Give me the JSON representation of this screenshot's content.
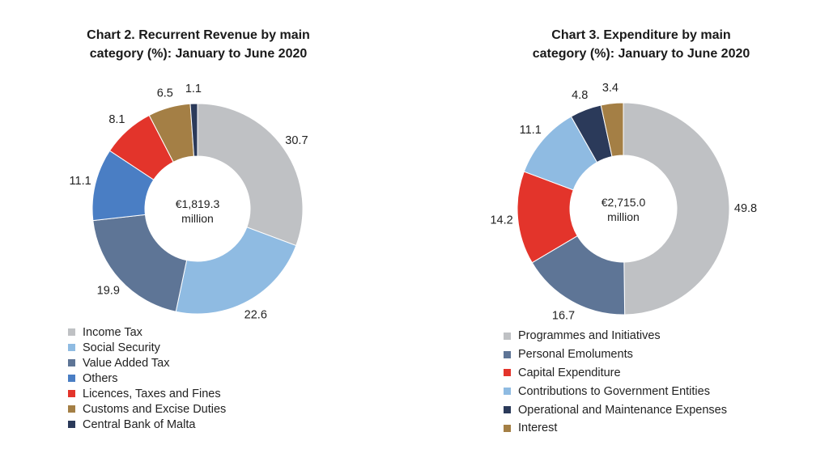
{
  "chart_data": [
    {
      "type": "pie",
      "donut": true,
      "title": "Chart 2. Recurrent Revenue by main category (%): January to June 2020",
      "title_lines": [
        "Chart 2. Recurrent Revenue by main",
        "category (%): January to June 2020"
      ],
      "center_text": [
        "€1,819.3",
        "million"
      ],
      "categories": [
        "Income Tax",
        "Social Security",
        "Value Added Tax",
        "Others",
        "Licences, Taxes and Fines",
        "Customs and Excise Duties",
        "Central Bank of Malta"
      ],
      "values": [
        30.7,
        22.6,
        19.9,
        11.1,
        8.1,
        6.5,
        1.1
      ],
      "colors": [
        "#bfc1c4",
        "#8fbbe2",
        "#5e7596",
        "#4a7ec4",
        "#e3342b",
        "#a47f45",
        "#2b3a5a"
      ],
      "legend": "bottom-left"
    },
    {
      "type": "pie",
      "donut": true,
      "title": "Chart 3. Expenditure by main category (%): January to June 2020",
      "title_lines": [
        "Chart 3. Expenditure by main",
        "category (%): January to June 2020"
      ],
      "center_text": [
        "€2,715.0",
        "million"
      ],
      "categories": [
        "Programmes and Initiatives",
        "Personal Emoluments",
        "Capital Expenditure",
        "Contributions to Government Entities",
        "Operational and Maintenance Expenses",
        "Interest"
      ],
      "values": [
        49.8,
        16.7,
        14.2,
        11.1,
        4.8,
        3.4
      ],
      "colors": [
        "#bfc1c4",
        "#5e7596",
        "#e3342b",
        "#8fbbe2",
        "#2b3a5a",
        "#a47f45"
      ],
      "legend": "bottom-left"
    }
  ]
}
